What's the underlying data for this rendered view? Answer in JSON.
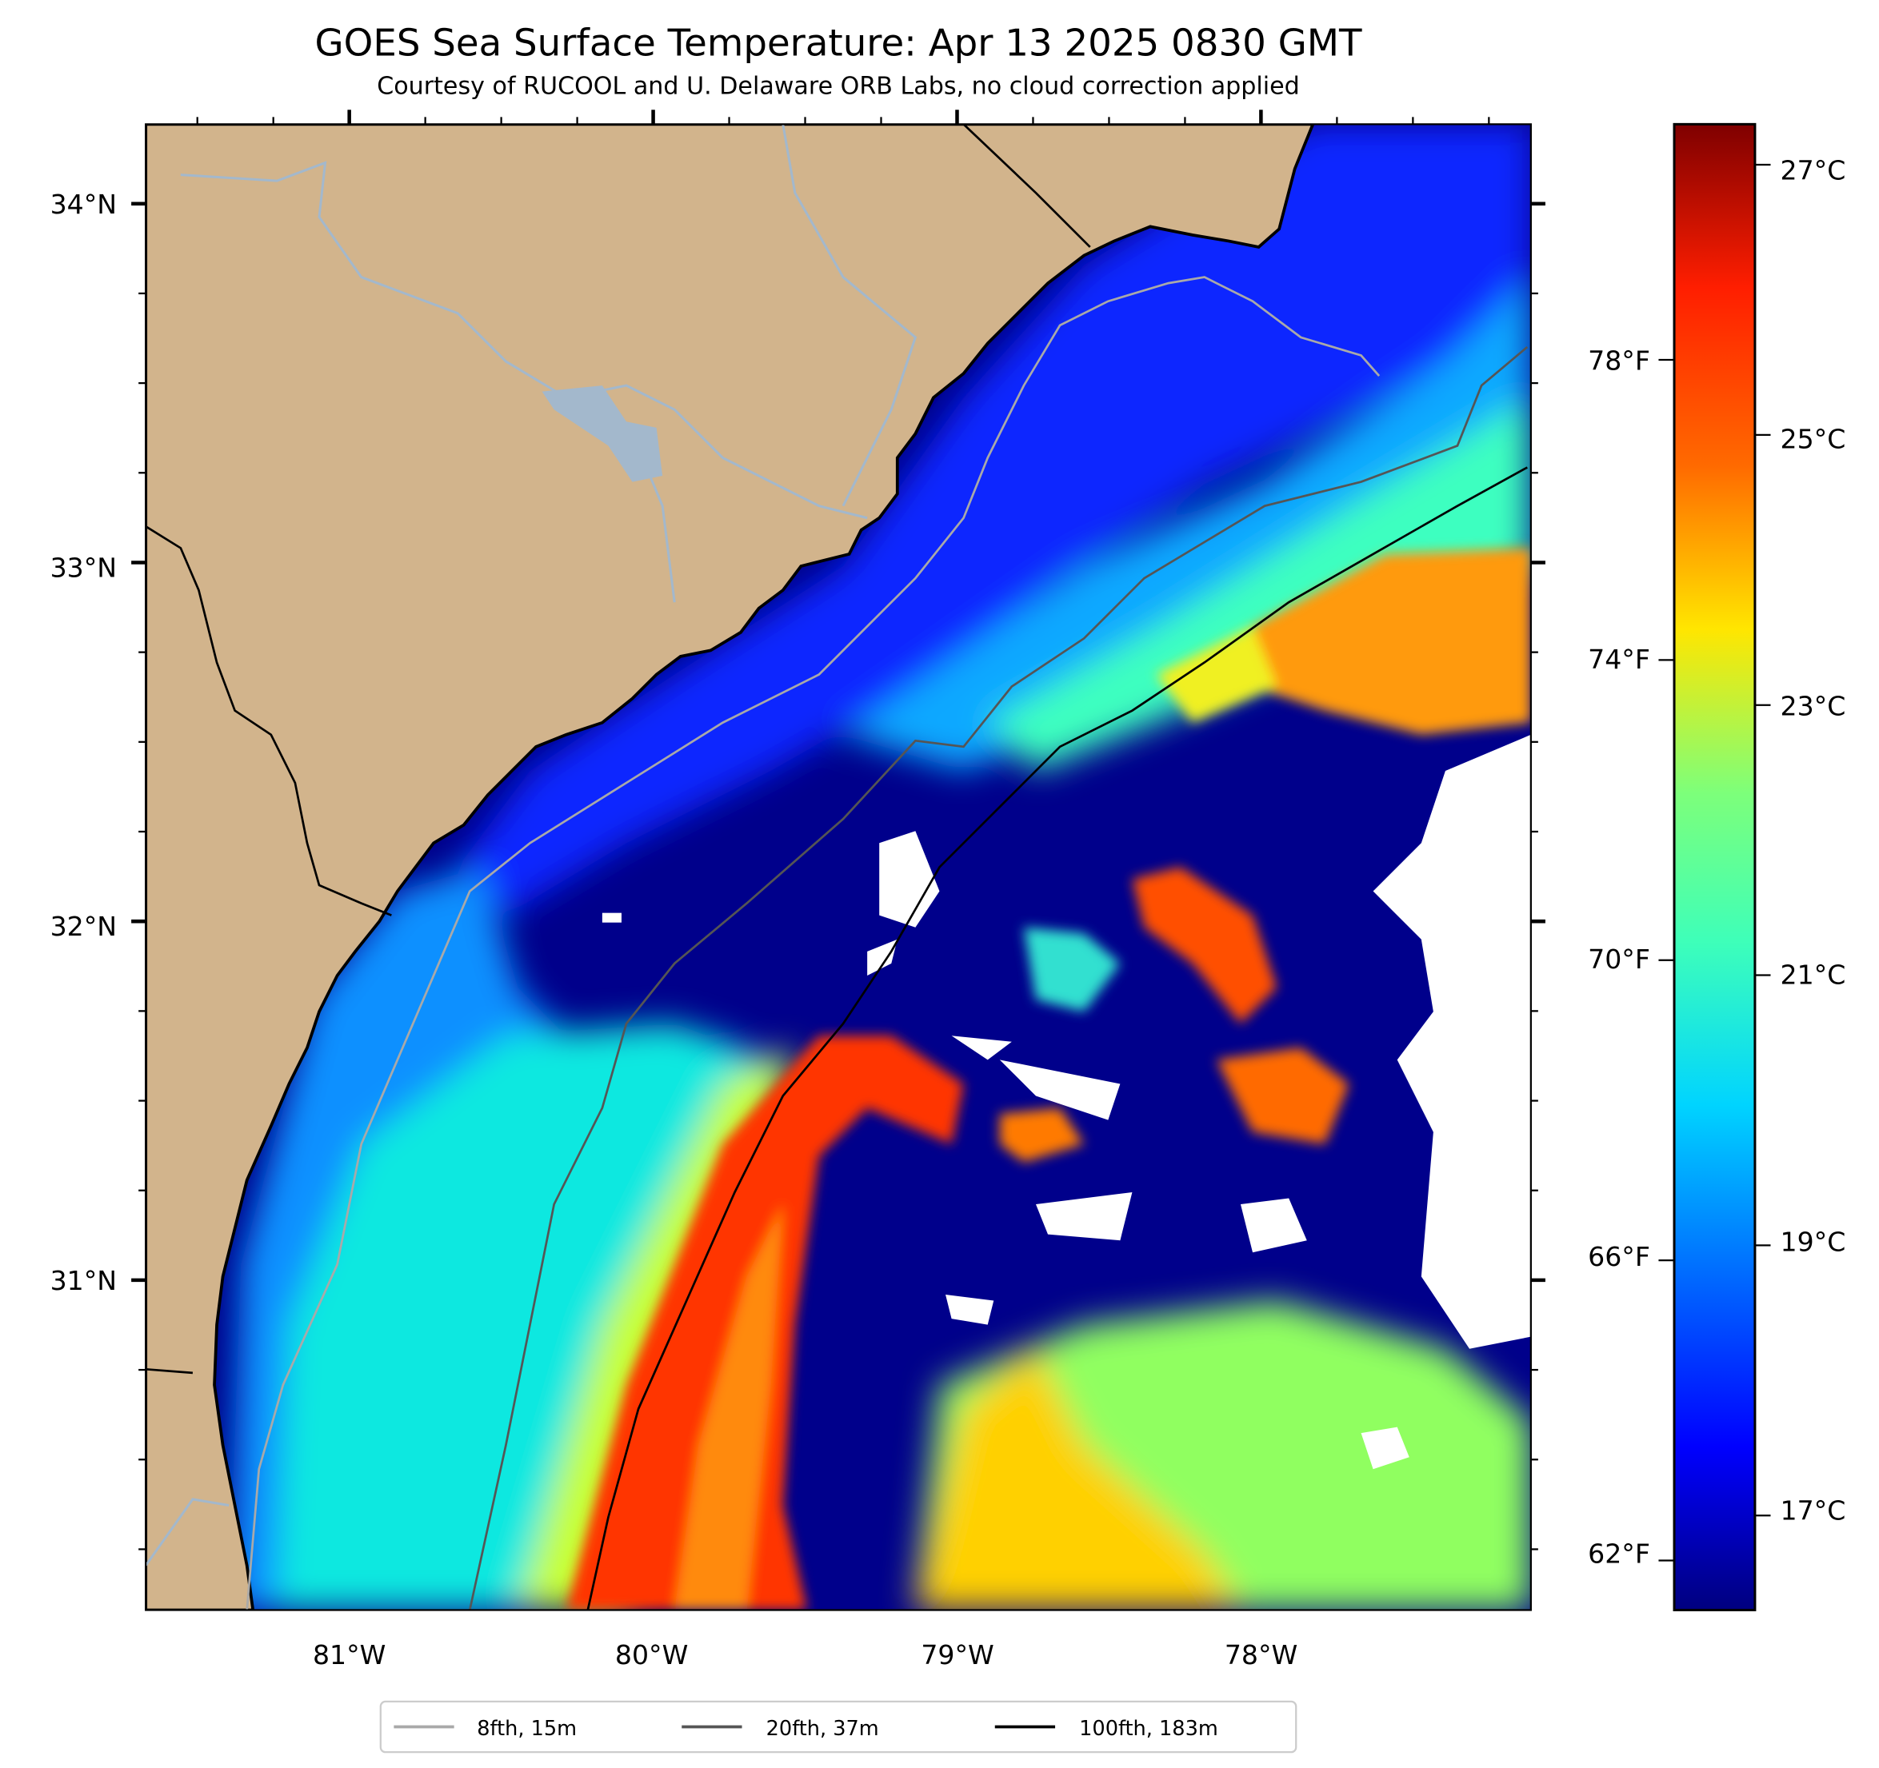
{
  "chart_data": {
    "type": "heatmap",
    "title": "GOES Sea Surface Temperature: Apr 13 2025 0830 GMT",
    "subtitle": "Courtesy of RUCOOL and U. Delaware ORB Labs, no cloud correction applied",
    "xlabel": "",
    "ylabel": "",
    "x_ticks": [
      "81°W",
      "80°W",
      "79°W",
      "78°W"
    ],
    "x_tick_values": [
      -81,
      -80,
      -79,
      -78
    ],
    "y_ticks": [
      "34°N",
      "33°N",
      "32°N",
      "31°N"
    ],
    "y_tick_values": [
      34,
      33,
      32,
      31
    ],
    "xlim": [
      -81.67,
      -77.12
    ],
    "ylim": [
      30.1,
      34.22
    ],
    "colormap": "jet",
    "colorbar": {
      "range_c": [
        16.3,
        27.3
      ],
      "celsius_ticks": [
        "27°C",
        "25°C",
        "23°C",
        "21°C",
        "19°C",
        "17°C"
      ],
      "celsius_values": [
        27,
        25,
        23,
        21,
        19,
        17
      ],
      "fahrenheit_ticks": [
        "78°F",
        "74°F",
        "70°F",
        "66°F",
        "62°F"
      ],
      "fahrenheit_values": [
        78,
        74,
        70,
        66,
        62
      ]
    },
    "legend": {
      "placement": "bottom-center",
      "entries": [
        {
          "label": "8fth, 15m",
          "color": "#a9a9a9"
        },
        {
          "label": "20fth, 37m",
          "color": "#555555"
        },
        {
          "label": "100fth, 183m",
          "color": "#000000"
        }
      ]
    },
    "colors": {
      "land": "#d2b48c",
      "cloud": "#ffffff",
      "cold": "#00008b",
      "warm": "#ff3a00"
    }
  }
}
